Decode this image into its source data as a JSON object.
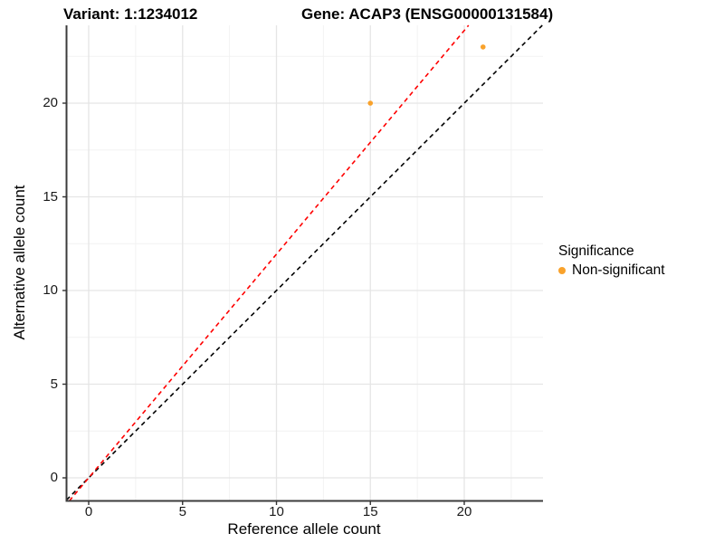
{
  "titles": {
    "variant": "Variant: 1:1234012",
    "gene": "Gene: ACAP3 (ENSG00000131584)"
  },
  "legend": {
    "title": "Significance",
    "entries": [
      {
        "label": "Non-significant",
        "color": "#F9A22B"
      }
    ]
  },
  "colors": {
    "background": "#FFFFFF",
    "grid_major": "#E5E5E5",
    "grid_minor": "#F2F2F2",
    "axis_line": "#3C3C3C",
    "tick_mark": "#333333",
    "tick_text": "#1A1A1A",
    "point": "#F9A22B",
    "identity_line": "#000000",
    "ratio_line": "#FF0000"
  },
  "chart_data": {
    "type": "scatter",
    "title": "Variant: 1:1234012    Gene: ACAP3 (ENSG00000131584)",
    "xlabel": "Reference allele count",
    "ylabel": "Alternative allele count",
    "x_ticks": [
      0,
      5,
      10,
      15,
      20
    ],
    "y_ticks": [
      0,
      5,
      10,
      15,
      20
    ],
    "x_minor_ticks": [
      2.5,
      7.5,
      12.5,
      17.5,
      22.5
    ],
    "y_minor_ticks": [
      2.5,
      7.5,
      12.5,
      17.5,
      22.5
    ],
    "xlim": [
      -1.2,
      24.2
    ],
    "ylim": [
      -1.23,
      24.15
    ],
    "grid": "on",
    "legend_position": "right",
    "series": [
      {
        "name": "Non-significant",
        "color": "#F9A22B",
        "points": [
          {
            "x": 15,
            "y": 20
          },
          {
            "x": 21,
            "y": 23
          }
        ]
      }
    ],
    "reference_lines": [
      {
        "name": "identity",
        "slope": 1,
        "intercept": 0,
        "style": "dashed",
        "color": "#000000"
      },
      {
        "name": "allelic-ratio-fit",
        "slope": 1.194,
        "intercept": 0,
        "style": "dashed",
        "color": "#FF0000"
      }
    ]
  }
}
